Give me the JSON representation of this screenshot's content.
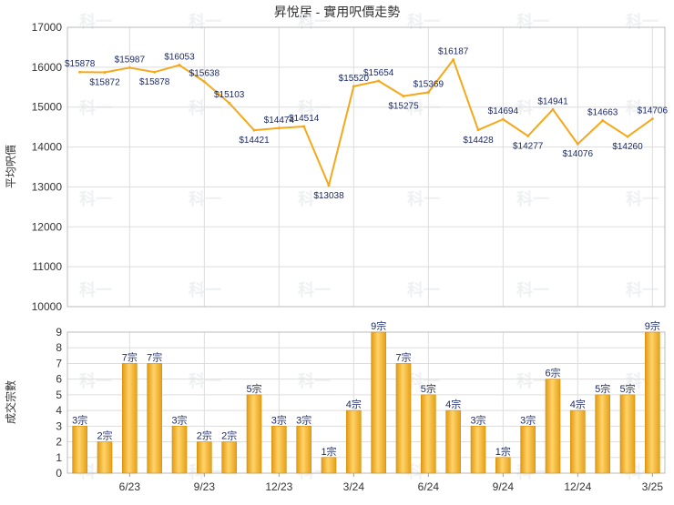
{
  "chart_data": [
    {
      "type": "line",
      "title": "昇悅居 - 實用呎價走勢",
      "ylabel": "平均呎價",
      "ylim": [
        10000,
        17000
      ],
      "yticks": [
        "10000",
        "11000",
        "12000",
        "13000",
        "14000",
        "15000",
        "16000",
        "17000"
      ],
      "grid": true,
      "color": "#f5a81a",
      "series": [
        {
          "values": [
            15878,
            15872,
            15987,
            15878,
            16053,
            15638,
            15103,
            14421,
            14474,
            14514,
            13038,
            15520,
            15654,
            15275,
            15369,
            16187,
            14428,
            14694,
            14277,
            14941,
            14076,
            14663,
            14260,
            14706
          ],
          "labels": [
            "$15878",
            "$15872",
            "$15987",
            "$15878",
            "$16053",
            "$15638",
            "$15103",
            "$14421",
            "$14474",
            "$14514",
            "$13038",
            "$15520",
            "$15654",
            "$15275",
            "$15369",
            "$16187",
            "$14428",
            "$14694",
            "$14277",
            "$14941",
            "$14076",
            "$14663",
            "$14260",
            "$14706"
          ]
        }
      ]
    },
    {
      "type": "bar",
      "ylabel": "成交宗數",
      "ylim": [
        0,
        9
      ],
      "yticks": [
        "0",
        "1",
        "2",
        "3",
        "4",
        "5",
        "6",
        "7",
        "8",
        "9"
      ],
      "grid": true,
      "color": "#f0a81e",
      "categories": [
        "",
        "",
        "6/23",
        "",
        "",
        "9/23",
        "",
        "",
        "12/23",
        "",
        "",
        "3/24",
        "",
        "",
        "6/24",
        "",
        "",
        "9/24",
        "",
        "",
        "12/24",
        "",
        "",
        "3/25"
      ],
      "values": [
        3,
        2,
        7,
        7,
        3,
        2,
        2,
        5,
        3,
        3,
        1,
        4,
        9,
        7,
        5,
        4,
        3,
        1,
        3,
        6,
        4,
        5,
        5,
        9
      ],
      "labels": [
        "3宗",
        "2宗",
        "7宗",
        "7宗",
        "3宗",
        "2宗",
        "2宗",
        "5宗",
        "3宗",
        "3宗",
        "1宗",
        "4宗",
        "9宗",
        "7宗",
        "5宗",
        "4宗",
        "3宗",
        "1宗",
        "3宗",
        "6宗",
        "4宗",
        "5宗",
        "5宗",
        "9宗"
      ]
    }
  ],
  "watermark": "科一"
}
